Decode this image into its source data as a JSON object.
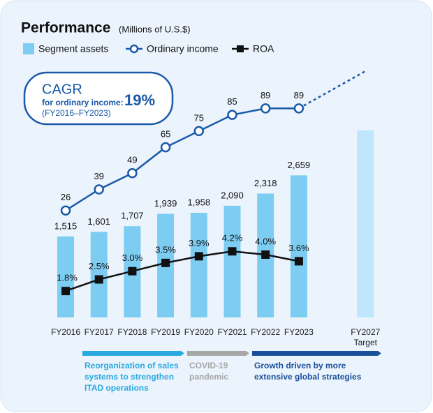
{
  "chart_data": {
    "type": "combo",
    "title": "Performance",
    "subtitle": "(Millions of U.S.$)",
    "categories": [
      "FY2016",
      "FY2017",
      "FY2018",
      "FY2019",
      "FY2020",
      "FY2021",
      "FY2022",
      "FY2023",
      "FY2027"
    ],
    "category_note": "Target",
    "ylim": [
      0,
      4700
    ],
    "y2lim": [
      -40,
      115
    ],
    "y3lim": [
      0.2,
      15.4
    ],
    "series": [
      {
        "name": "Segment assets",
        "type": "bar",
        "color": "#7dcdf3",
        "target_color": "#bfe6fa",
        "values": [
          1515,
          1601,
          1707,
          1939,
          1958,
          2090,
          2318,
          2659,
          3500
        ],
        "value_labels": [
          "1,515",
          "1,601",
          "1,707",
          "1,939",
          "1,958",
          "2,090",
          "2,318",
          "2,659",
          null
        ]
      },
      {
        "name": "Ordinary income",
        "type": "line",
        "axis": "y2",
        "color": "#1a5aa8",
        "dashed_last": true,
        "values": [
          26,
          39,
          49,
          65,
          75,
          85,
          89,
          89,
          112
        ],
        "value_labels": [
          "26",
          "39",
          "49",
          "65",
          "75",
          "85",
          "89",
          "89",
          null
        ]
      },
      {
        "name": "ROA",
        "type": "line",
        "axis": "y3",
        "color": "#111111",
        "marker": "square",
        "values": [
          1.8,
          2.5,
          3.0,
          3.5,
          3.9,
          4.2,
          4.0,
          3.6,
          null
        ],
        "value_labels": [
          "1.8%",
          "2.5%",
          "3.0%",
          "3.5%",
          "3.9%",
          "4.2%",
          "4.0%",
          "3.6%",
          null
        ]
      }
    ],
    "cagr": {
      "title": "CAGR",
      "label": "for ordinary income:",
      "value": "19%",
      "period": "(FY2016–FY2023)"
    },
    "phases": [
      {
        "lines": [
          "Reorganization of sales",
          "systems to strengthen",
          "ITAD operations"
        ],
        "color": "#29a9e1"
      },
      {
        "lines": [
          "COVID-19",
          "pandemic"
        ],
        "color": "#a6a6a6"
      },
      {
        "lines": [
          "Growth driven by more",
          "extensive global strategies"
        ],
        "color": "#1a4f9c"
      }
    ]
  }
}
